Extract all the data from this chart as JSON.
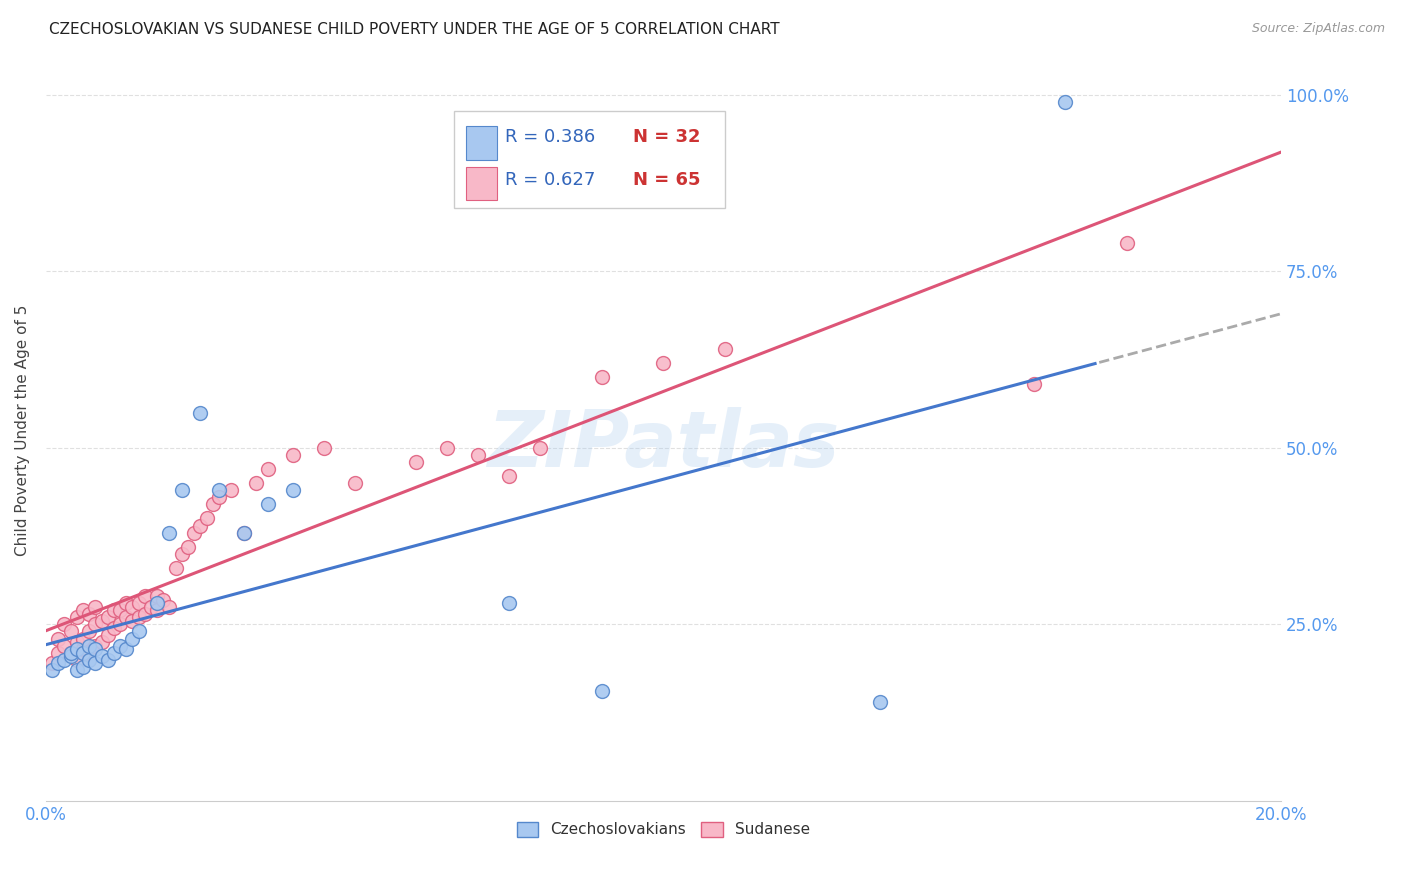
{
  "title": "CZECHOSLOVAKIAN VS SUDANESE CHILD POVERTY UNDER THE AGE OF 5 CORRELATION CHART",
  "source": "Source: ZipAtlas.com",
  "ylabel": "Child Poverty Under the Age of 5",
  "xlim": [
    0,
    0.2
  ],
  "ylim": [
    0,
    1.05
  ],
  "legend_r_czech": "R = 0.386",
  "legend_n_czech": "N = 32",
  "legend_r_sudan": "R = 0.627",
  "legend_n_sudan": "N = 65",
  "watermark": "ZIPatlas",
  "czech_color": "#a8c8f0",
  "czech_color_dark": "#5588cc",
  "sudan_color": "#f8b8c8",
  "sudan_color_dark": "#e06080",
  "czech_line_color": "#4477cc",
  "sudan_line_color": "#dd5577",
  "czech_scatter_x": [
    0.001,
    0.002,
    0.003,
    0.004,
    0.004,
    0.005,
    0.005,
    0.006,
    0.006,
    0.007,
    0.007,
    0.008,
    0.008,
    0.009,
    0.01,
    0.011,
    0.012,
    0.013,
    0.014,
    0.015,
    0.018,
    0.02,
    0.022,
    0.025,
    0.028,
    0.032,
    0.036,
    0.04,
    0.075,
    0.09,
    0.135,
    0.165
  ],
  "czech_scatter_y": [
    0.185,
    0.195,
    0.2,
    0.205,
    0.21,
    0.185,
    0.215,
    0.19,
    0.21,
    0.2,
    0.22,
    0.195,
    0.215,
    0.205,
    0.2,
    0.21,
    0.22,
    0.215,
    0.23,
    0.24,
    0.28,
    0.38,
    0.44,
    0.55,
    0.44,
    0.38,
    0.42,
    0.44,
    0.28,
    0.155,
    0.14,
    0.99
  ],
  "sudan_scatter_x": [
    0.001,
    0.002,
    0.002,
    0.003,
    0.003,
    0.004,
    0.004,
    0.005,
    0.005,
    0.005,
    0.006,
    0.006,
    0.006,
    0.007,
    0.007,
    0.007,
    0.008,
    0.008,
    0.008,
    0.009,
    0.009,
    0.01,
    0.01,
    0.011,
    0.011,
    0.012,
    0.012,
    0.013,
    0.013,
    0.014,
    0.014,
    0.015,
    0.015,
    0.016,
    0.016,
    0.017,
    0.018,
    0.018,
    0.019,
    0.02,
    0.021,
    0.022,
    0.023,
    0.024,
    0.025,
    0.026,
    0.027,
    0.028,
    0.03,
    0.032,
    0.034,
    0.036,
    0.04,
    0.045,
    0.05,
    0.06,
    0.065,
    0.07,
    0.075,
    0.08,
    0.09,
    0.1,
    0.11,
    0.16,
    0.175
  ],
  "sudan_scatter_y": [
    0.195,
    0.21,
    0.23,
    0.22,
    0.25,
    0.21,
    0.24,
    0.2,
    0.225,
    0.26,
    0.215,
    0.23,
    0.27,
    0.21,
    0.24,
    0.265,
    0.22,
    0.25,
    0.275,
    0.225,
    0.255,
    0.235,
    0.26,
    0.245,
    0.27,
    0.25,
    0.27,
    0.26,
    0.28,
    0.255,
    0.275,
    0.26,
    0.28,
    0.265,
    0.29,
    0.275,
    0.27,
    0.29,
    0.285,
    0.275,
    0.33,
    0.35,
    0.36,
    0.38,
    0.39,
    0.4,
    0.42,
    0.43,
    0.44,
    0.38,
    0.45,
    0.47,
    0.49,
    0.5,
    0.45,
    0.48,
    0.5,
    0.49,
    0.46,
    0.5,
    0.6,
    0.62,
    0.64,
    0.59,
    0.79
  ],
  "background_color": "#ffffff",
  "grid_color": "#dddddd",
  "title_color": "#222222",
  "tick_label_color": "#5599ee"
}
